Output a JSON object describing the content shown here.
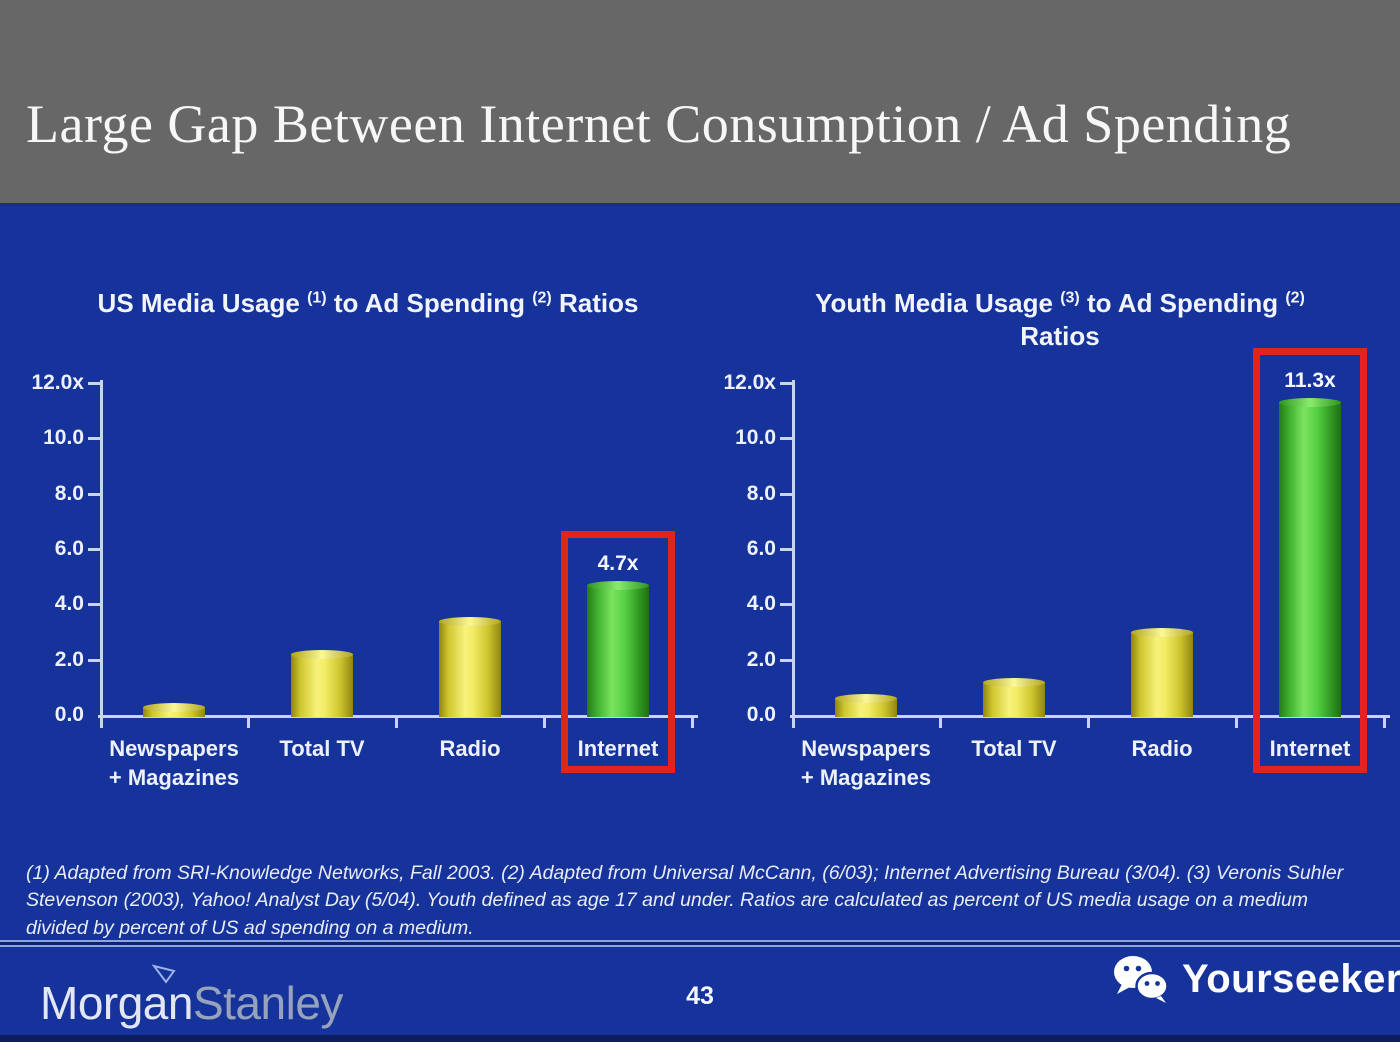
{
  "slide": {
    "title": "Large Gap Between Internet Consumption / Ad Spending",
    "footnote": "(1) Adapted from SRI-Knowledge Networks, Fall 2003.  (2) Adapted from Universal McCann, (6/03); Internet Advertising Bureau (3/04). (3) Veronis Suhler Stevenson (2003), Yahoo! Analyst Day (5/04).  Youth defined as age 17 and under.  Ratios are calculated as percent of US media usage on a medium divided by percent of US ad spending on a medium."
  },
  "footer": {
    "page_number": "43",
    "brand": {
      "part1": "Morgan",
      "part2": "Stanley",
      "mark": "morgan-stanley-flag-icon"
    },
    "watermark_label": "Yourseeker",
    "watermark_icon": "wechat-icon"
  },
  "colors": {
    "background_blue": "#15339b",
    "header_gray": "#676767",
    "bar_yellow": "#efe957",
    "bar_green": "#50c840",
    "highlight_red": "#e2251c",
    "axis_light": "#c9d4f0",
    "text_white": "#f5f6fc"
  },
  "chart_data": [
    {
      "type": "bar",
      "title": "US Media Usage (1) to Ad Spending (2) Ratios",
      "title_segments": [
        {
          "text": "US Media Usage "
        },
        {
          "text": "(1)",
          "sup": true
        },
        {
          "text": " to Ad Spending "
        },
        {
          "text": "(2)",
          "sup": true
        },
        {
          "text": " Ratios"
        }
      ],
      "categories": [
        "Newspapers\n+ Magazines",
        "Total TV",
        "Radio",
        "Internet"
      ],
      "values": [
        0.3,
        2.2,
        3.4,
        4.7
      ],
      "bar_styles": [
        "yellow",
        "yellow",
        "yellow",
        "green"
      ],
      "highlight_index": 3,
      "bar_label": {
        "index": 3,
        "text": "4.7x"
      },
      "xlabel": "",
      "ylabel": "",
      "ylim": [
        0,
        12
      ],
      "y_ticks": [
        {
          "value": 12,
          "label": "12.0x"
        },
        {
          "value": 10,
          "label": "10.0"
        },
        {
          "value": 8,
          "label": "8.0"
        },
        {
          "value": 6,
          "label": "6.0"
        },
        {
          "value": 4,
          "label": "4.0"
        },
        {
          "value": 2,
          "label": "2.0"
        },
        {
          "value": 0,
          "label": "0.0"
        }
      ],
      "grid": false,
      "legend": false
    },
    {
      "type": "bar",
      "title": "Youth Media Usage (3) to Ad Spending (2) Ratios",
      "title_segments": [
        {
          "text": "Youth Media Usage "
        },
        {
          "text": "(3)",
          "sup": true
        },
        {
          "text": " to Ad Spending "
        },
        {
          "text": "(2)",
          "sup": true
        },
        {
          "text": "Ratios",
          "br_before": true
        }
      ],
      "categories": [
        "Newspapers\n+ Magazines",
        "Total TV",
        "Radio",
        "Internet"
      ],
      "values": [
        0.6,
        1.2,
        3.0,
        11.3
      ],
      "bar_styles": [
        "yellow",
        "yellow",
        "yellow",
        "green"
      ],
      "highlight_index": 3,
      "bar_label": {
        "index": 3,
        "text": "11.3x"
      },
      "xlabel": "",
      "ylabel": "",
      "ylim": [
        0,
        12
      ],
      "y_ticks": [
        {
          "value": 12,
          "label": "12.0x"
        },
        {
          "value": 10,
          "label": "10.0"
        },
        {
          "value": 8,
          "label": "8.0"
        },
        {
          "value": 6,
          "label": "6.0"
        },
        {
          "value": 4,
          "label": "4.0"
        },
        {
          "value": 2,
          "label": "2.0"
        },
        {
          "value": 0,
          "label": "0.0"
        }
      ],
      "grid": false,
      "legend": false
    }
  ]
}
